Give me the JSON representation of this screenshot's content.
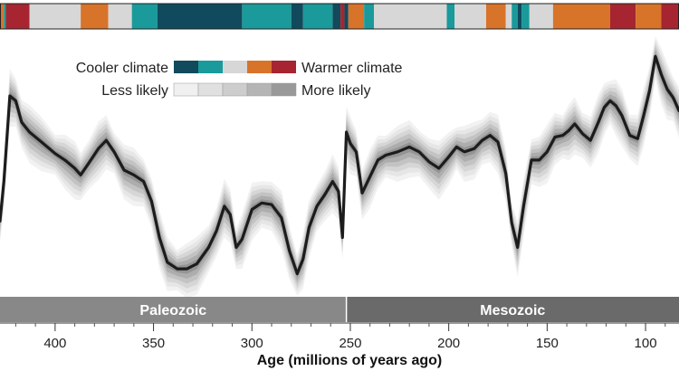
{
  "chart_data": {
    "type": "area",
    "title": "",
    "xlabel": "Age (millions of years ago)",
    "ylabel": "",
    "xlim": [
      428,
      83
    ],
    "x_direction": "descending",
    "xticks": [
      400,
      350,
      300,
      250,
      200,
      150,
      100
    ],
    "grid": false,
    "legend": {
      "placement": "top-left",
      "climate_low": "Cooler climate",
      "climate_high": "Warmer climate",
      "likelihood_low": "Less likely",
      "likelihood_high": "More likely"
    },
    "climate_swatches": [
      "#114a5c",
      "#1a9a9a",
      "#d7d7d7",
      "#d8732a",
      "#a62530"
    ],
    "likelihood_swatches": [
      "#f0f0f0",
      "#e0e0e0",
      "#cdcdcd",
      "#b5b5b5",
      "#999999"
    ],
    "eras": [
      {
        "name": "Paleozoic",
        "start": 428,
        "end": 252,
        "color": "#888888"
      },
      {
        "name": "Mesozoic",
        "start": 252,
        "end": 83,
        "color": "#6a6a6a"
      }
    ],
    "climate_band": [
      {
        "start": 428,
        "end": 426,
        "state": "#d8732a"
      },
      {
        "start": 426,
        "end": 425,
        "state": "#1a9a9a"
      },
      {
        "start": 425,
        "end": 413,
        "state": "#a62530"
      },
      {
        "start": 413,
        "end": 387,
        "state": "#d7d7d7"
      },
      {
        "start": 387,
        "end": 373,
        "state": "#d8732a"
      },
      {
        "start": 373,
        "end": 361,
        "state": "#d7d7d7"
      },
      {
        "start": 361,
        "end": 348,
        "state": "#1a9a9a"
      },
      {
        "start": 348,
        "end": 305,
        "state": "#114a5c"
      },
      {
        "start": 305,
        "end": 280,
        "state": "#1a9a9a"
      },
      {
        "start": 280,
        "end": 274,
        "state": "#114a5c"
      },
      {
        "start": 274,
        "end": 259,
        "state": "#1a9a9a"
      },
      {
        "start": 259,
        "end": 255,
        "state": "#114a5c"
      },
      {
        "start": 255,
        "end": 253,
        "state": "#a62530"
      },
      {
        "start": 253,
        "end": 251,
        "state": "#114a5c"
      },
      {
        "start": 251,
        "end": 243,
        "state": "#d8732a"
      },
      {
        "start": 243,
        "end": 238,
        "state": "#1a9a9a"
      },
      {
        "start": 238,
        "end": 201,
        "state": "#d7d7d7"
      },
      {
        "start": 201,
        "end": 197,
        "state": "#1a9a9a"
      },
      {
        "start": 197,
        "end": 181,
        "state": "#d7d7d7"
      },
      {
        "start": 181,
        "end": 171,
        "state": "#d8732a"
      },
      {
        "start": 171,
        "end": 168,
        "state": "#d7d7d7"
      },
      {
        "start": 168,
        "end": 165,
        "state": "#1a9a9a"
      },
      {
        "start": 165,
        "end": 163,
        "state": "#114a5c"
      },
      {
        "start": 163,
        "end": 159,
        "state": "#1a9a9a"
      },
      {
        "start": 159,
        "end": 147,
        "state": "#d7d7d7"
      },
      {
        "start": 147,
        "end": 118,
        "state": "#d8732a"
      },
      {
        "start": 118,
        "end": 105,
        "state": "#a62530"
      },
      {
        "start": 105,
        "end": 92,
        "state": "#d8732a"
      },
      {
        "start": 92,
        "end": 83,
        "state": "#a62530"
      }
    ],
    "series": [
      {
        "x": [
          428,
          426,
          423,
          420,
          417,
          413,
          407,
          400,
          395,
          390,
          387,
          383,
          378,
          374,
          370,
          365,
          360,
          355,
          351,
          347,
          343,
          338,
          333,
          328,
          322,
          318,
          314,
          311,
          308,
          305,
          300,
          295,
          290,
          285,
          281,
          277,
          274,
          271,
          267,
          263,
          259,
          256,
          254,
          252,
          250,
          247,
          244,
          240,
          236,
          232,
          226,
          220,
          215,
          210,
          205,
          200,
          196,
          192,
          187,
          183,
          179,
          175,
          171,
          168,
          165,
          162,
          158,
          154,
          150,
          146,
          142,
          139,
          136,
          132,
          128,
          124,
          121,
          118,
          115,
          112,
          108,
          104,
          101,
          98,
          95,
          92,
          89,
          86,
          83
        ],
        "values": [
          4.6,
          7.0,
          12.2,
          11.9,
          10.6,
          10.0,
          9.4,
          8.7,
          8.3,
          7.8,
          7.4,
          8.1,
          9.0,
          9.5,
          8.8,
          7.7,
          7.4,
          7.0,
          5.8,
          3.6,
          2.1,
          1.7,
          1.7,
          2.0,
          3.0,
          4.0,
          5.5,
          5.0,
          3.0,
          3.5,
          5.3,
          5.7,
          5.6,
          4.8,
          2.8,
          1.4,
          2.3,
          4.2,
          5.5,
          6.2,
          7.0,
          6.4,
          3.6,
          10.0,
          9.3,
          8.8,
          6.3,
          7.3,
          8.3,
          8.6,
          8.8,
          9.1,
          8.8,
          8.2,
          7.8,
          8.5,
          9.1,
          8.8,
          9.0,
          9.5,
          9.8,
          9.4,
          7.5,
          4.5,
          3.0,
          5.5,
          8.3,
          8.3,
          8.8,
          9.7,
          9.8,
          10.1,
          10.5,
          9.9,
          9.5,
          10.6,
          11.5,
          11.9,
          11.6,
          11.0,
          9.8,
          9.6,
          11.0,
          12.5,
          14.6,
          13.5,
          12.6,
          12.1,
          11.3
        ]
      }
    ]
  }
}
